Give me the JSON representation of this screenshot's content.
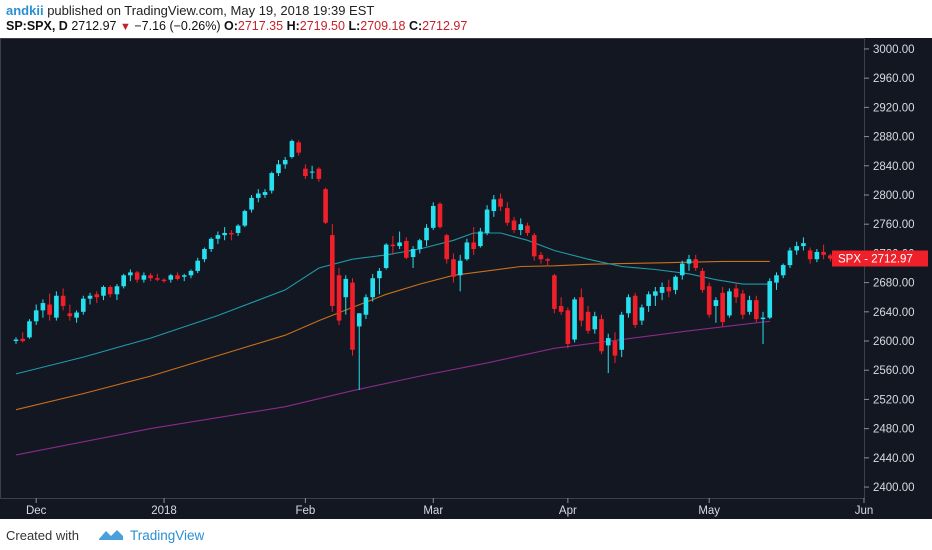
{
  "header": {
    "author": "andkii",
    "published": "published on TradingView.com, May 19, 2018 19:39 EST",
    "symbol": "SP:SPX, D",
    "last": "2712.97",
    "change": "−7.16 (−0.26%)",
    "open_label": "O:",
    "open": "2717.35",
    "high_label": "H:",
    "high": "2719.50",
    "low_label": "L:",
    "low": "2709.18",
    "close_label": "C:",
    "close": "2712.97"
  },
  "footer": {
    "created_with": "Created with",
    "brand": "TradingView"
  },
  "colors": {
    "background": "#131722",
    "up": "#26e0f0",
    "down": "#f0202a",
    "ma_short": "#1e9aa8",
    "ma_mid": "#c8701a",
    "ma_long": "#8a2a8a",
    "price_tag": "#f0202a"
  },
  "chart_data": {
    "type": "candlestick",
    "y_ticks": [
      "3000.00",
      "2960.00",
      "2920.00",
      "2880.00",
      "2840.00",
      "2800.00",
      "2760.00",
      "2720.00",
      "2680.00",
      "2640.00",
      "2600.00",
      "2560.00",
      "2520.00",
      "2480.00",
      "2440.00",
      "2400.00"
    ],
    "ylim": [
      2385,
      3015
    ],
    "x_ticks": [
      {
        "label": "Dec",
        "index": 3
      },
      {
        "label": "2018",
        "index": 22
      },
      {
        "label": "Feb",
        "index": 43
      },
      {
        "label": "Mar",
        "index": 62
      },
      {
        "label": "Apr",
        "index": 82
      },
      {
        "label": "May",
        "index": 103
      },
      {
        "label": "Jun",
        "index": 126
      }
    ],
    "price_tag": {
      "label": "SPX",
      "value": "2712.97",
      "price": 2712.97
    },
    "candles": [
      {
        "o": 2600,
        "h": 2605,
        "l": 2596,
        "c": 2602
      },
      {
        "o": 2603,
        "h": 2612,
        "l": 2598,
        "c": 2600
      },
      {
        "o": 2605,
        "h": 2630,
        "l": 2603,
        "c": 2627
      },
      {
        "o": 2627,
        "h": 2650,
        "l": 2622,
        "c": 2642
      },
      {
        "o": 2642,
        "h": 2657,
        "l": 2632,
        "c": 2652
      },
      {
        "o": 2650,
        "h": 2665,
        "l": 2628,
        "c": 2636
      },
      {
        "o": 2632,
        "h": 2668,
        "l": 2628,
        "c": 2662
      },
      {
        "o": 2662,
        "h": 2672,
        "l": 2642,
        "c": 2648
      },
      {
        "o": 2638,
        "h": 2650,
        "l": 2628,
        "c": 2634
      },
      {
        "o": 2632,
        "h": 2642,
        "l": 2625,
        "c": 2639
      },
      {
        "o": 2640,
        "h": 2662,
        "l": 2636,
        "c": 2658
      },
      {
        "o": 2658,
        "h": 2666,
        "l": 2650,
        "c": 2662
      },
      {
        "o": 2664,
        "h": 2668,
        "l": 2652,
        "c": 2660
      },
      {
        "o": 2662,
        "h": 2676,
        "l": 2656,
        "c": 2674
      },
      {
        "o": 2674,
        "h": 2676,
        "l": 2660,
        "c": 2664
      },
      {
        "o": 2664,
        "h": 2678,
        "l": 2656,
        "c": 2675
      },
      {
        "o": 2675,
        "h": 2692,
        "l": 2672,
        "c": 2690
      },
      {
        "o": 2690,
        "h": 2698,
        "l": 2682,
        "c": 2694
      },
      {
        "o": 2694,
        "h": 2696,
        "l": 2680,
        "c": 2684
      },
      {
        "o": 2684,
        "h": 2694,
        "l": 2680,
        "c": 2690
      },
      {
        "o": 2690,
        "h": 2693,
        "l": 2682,
        "c": 2686
      },
      {
        "o": 2686,
        "h": 2692,
        "l": 2682,
        "c": 2684
      },
      {
        "o": 2684,
        "h": 2686,
        "l": 2680,
        "c": 2682
      },
      {
        "o": 2684,
        "h": 2692,
        "l": 2680,
        "c": 2690
      },
      {
        "o": 2690,
        "h": 2694,
        "l": 2683,
        "c": 2685
      },
      {
        "o": 2688,
        "h": 2692,
        "l": 2682,
        "c": 2690
      },
      {
        "o": 2690,
        "h": 2698,
        "l": 2686,
        "c": 2696
      },
      {
        "o": 2696,
        "h": 2714,
        "l": 2693,
        "c": 2710
      },
      {
        "o": 2712,
        "h": 2728,
        "l": 2708,
        "c": 2726
      },
      {
        "o": 2726,
        "h": 2742,
        "l": 2722,
        "c": 2740
      },
      {
        "o": 2740,
        "h": 2750,
        "l": 2733,
        "c": 2745
      },
      {
        "o": 2745,
        "h": 2756,
        "l": 2738,
        "c": 2748
      },
      {
        "o": 2748,
        "h": 2752,
        "l": 2738,
        "c": 2746
      },
      {
        "o": 2748,
        "h": 2760,
        "l": 2744,
        "c": 2758
      },
      {
        "o": 2758,
        "h": 2780,
        "l": 2756,
        "c": 2778
      },
      {
        "o": 2780,
        "h": 2800,
        "l": 2776,
        "c": 2796
      },
      {
        "o": 2796,
        "h": 2808,
        "l": 2790,
        "c": 2802
      },
      {
        "o": 2800,
        "h": 2808,
        "l": 2796,
        "c": 2804
      },
      {
        "o": 2806,
        "h": 2832,
        "l": 2802,
        "c": 2830
      },
      {
        "o": 2830,
        "h": 2848,
        "l": 2826,
        "c": 2842
      },
      {
        "o": 2842,
        "h": 2852,
        "l": 2836,
        "c": 2848
      },
      {
        "o": 2852,
        "h": 2876,
        "l": 2850,
        "c": 2874
      },
      {
        "o": 2872,
        "h": 2875,
        "l": 2854,
        "c": 2858
      },
      {
        "o": 2836,
        "h": 2842,
        "l": 2822,
        "c": 2826
      },
      {
        "o": 2832,
        "h": 2840,
        "l": 2822,
        "c": 2832
      },
      {
        "o": 2836,
        "h": 2838,
        "l": 2818,
        "c": 2822
      },
      {
        "o": 2808,
        "h": 2810,
        "l": 2760,
        "c": 2762
      },
      {
        "o": 2745,
        "h": 2760,
        "l": 2640,
        "c": 2648
      },
      {
        "o": 2690,
        "h": 2700,
        "l": 2622,
        "c": 2628
      },
      {
        "o": 2660,
        "h": 2690,
        "l": 2636,
        "c": 2685
      },
      {
        "o": 2680,
        "h": 2686,
        "l": 2580,
        "c": 2588
      },
      {
        "o": 2620,
        "h": 2638,
        "l": 2533,
        "c": 2638
      },
      {
        "o": 2636,
        "h": 2664,
        "l": 2630,
        "c": 2660
      },
      {
        "o": 2660,
        "h": 2692,
        "l": 2654,
        "c": 2686
      },
      {
        "o": 2686,
        "h": 2700,
        "l": 2664,
        "c": 2696
      },
      {
        "o": 2700,
        "h": 2734,
        "l": 2698,
        "c": 2732
      },
      {
        "o": 2732,
        "h": 2744,
        "l": 2718,
        "c": 2730
      },
      {
        "o": 2730,
        "h": 2750,
        "l": 2726,
        "c": 2735
      },
      {
        "o": 2737,
        "h": 2742,
        "l": 2712,
        "c": 2714
      },
      {
        "o": 2715,
        "h": 2730,
        "l": 2700,
        "c": 2726
      },
      {
        "o": 2726,
        "h": 2740,
        "l": 2720,
        "c": 2738
      },
      {
        "o": 2738,
        "h": 2760,
        "l": 2730,
        "c": 2755
      },
      {
        "o": 2755,
        "h": 2790,
        "l": 2752,
        "c": 2785
      },
      {
        "o": 2788,
        "h": 2790,
        "l": 2754,
        "c": 2756
      },
      {
        "o": 2745,
        "h": 2747,
        "l": 2706,
        "c": 2712
      },
      {
        "o": 2712,
        "h": 2720,
        "l": 2680,
        "c": 2688
      },
      {
        "o": 2690,
        "h": 2718,
        "l": 2668,
        "c": 2710
      },
      {
        "o": 2712,
        "h": 2740,
        "l": 2710,
        "c": 2735
      },
      {
        "o": 2735,
        "h": 2756,
        "l": 2718,
        "c": 2726
      },
      {
        "o": 2730,
        "h": 2755,
        "l": 2728,
        "c": 2750
      },
      {
        "o": 2748,
        "h": 2786,
        "l": 2745,
        "c": 2780
      },
      {
        "o": 2778,
        "h": 2800,
        "l": 2770,
        "c": 2794
      },
      {
        "o": 2795,
        "h": 2802,
        "l": 2778,
        "c": 2784
      },
      {
        "o": 2782,
        "h": 2790,
        "l": 2758,
        "c": 2762
      },
      {
        "o": 2765,
        "h": 2770,
        "l": 2748,
        "c": 2752
      },
      {
        "o": 2752,
        "h": 2768,
        "l": 2745,
        "c": 2760
      },
      {
        "o": 2758,
        "h": 2762,
        "l": 2744,
        "c": 2748
      },
      {
        "o": 2745,
        "h": 2748,
        "l": 2710,
        "c": 2716
      },
      {
        "o": 2718,
        "h": 2722,
        "l": 2706,
        "c": 2712
      },
      {
        "o": 2712,
        "h": 2714,
        "l": 2702,
        "c": 2710
      },
      {
        "o": 2690,
        "h": 2692,
        "l": 2638,
        "c": 2644
      },
      {
        "o": 2648,
        "h": 2660,
        "l": 2636,
        "c": 2640
      },
      {
        "o": 2642,
        "h": 2646,
        "l": 2590,
        "c": 2596
      },
      {
        "o": 2602,
        "h": 2660,
        "l": 2598,
        "c": 2657
      },
      {
        "o": 2660,
        "h": 2672,
        "l": 2620,
        "c": 2628
      },
      {
        "o": 2640,
        "h": 2648,
        "l": 2610,
        "c": 2614
      },
      {
        "o": 2616,
        "h": 2640,
        "l": 2610,
        "c": 2634
      },
      {
        "o": 2630,
        "h": 2636,
        "l": 2582,
        "c": 2586
      },
      {
        "o": 2594,
        "h": 2610,
        "l": 2556,
        "c": 2604
      },
      {
        "o": 2600,
        "h": 2612,
        "l": 2570,
        "c": 2580
      },
      {
        "o": 2588,
        "h": 2640,
        "l": 2578,
        "c": 2636
      },
      {
        "o": 2638,
        "h": 2664,
        "l": 2632,
        "c": 2660
      },
      {
        "o": 2662,
        "h": 2666,
        "l": 2618,
        "c": 2622
      },
      {
        "o": 2628,
        "h": 2650,
        "l": 2622,
        "c": 2646
      },
      {
        "o": 2648,
        "h": 2668,
        "l": 2640,
        "c": 2664
      },
      {
        "o": 2662,
        "h": 2674,
        "l": 2648,
        "c": 2668
      },
      {
        "o": 2666,
        "h": 2680,
        "l": 2656,
        "c": 2674
      },
      {
        "o": 2674,
        "h": 2684,
        "l": 2660,
        "c": 2668
      },
      {
        "o": 2670,
        "h": 2690,
        "l": 2664,
        "c": 2688
      },
      {
        "o": 2690,
        "h": 2710,
        "l": 2684,
        "c": 2706
      },
      {
        "o": 2706,
        "h": 2718,
        "l": 2696,
        "c": 2712
      },
      {
        "o": 2712,
        "h": 2718,
        "l": 2696,
        "c": 2700
      },
      {
        "o": 2696,
        "h": 2700,
        "l": 2666,
        "c": 2670
      },
      {
        "o": 2675,
        "h": 2680,
        "l": 2632,
        "c": 2636
      },
      {
        "o": 2648,
        "h": 2660,
        "l": 2625,
        "c": 2656
      },
      {
        "o": 2666,
        "h": 2674,
        "l": 2620,
        "c": 2626
      },
      {
        "o": 2635,
        "h": 2672,
        "l": 2632,
        "c": 2668
      },
      {
        "o": 2672,
        "h": 2680,
        "l": 2652,
        "c": 2660
      },
      {
        "o": 2665,
        "h": 2670,
        "l": 2630,
        "c": 2636
      },
      {
        "o": 2640,
        "h": 2662,
        "l": 2636,
        "c": 2656
      },
      {
        "o": 2656,
        "h": 2662,
        "l": 2626,
        "c": 2630
      },
      {
        "o": 2630,
        "h": 2640,
        "l": 2596,
        "c": 2632
      },
      {
        "o": 2632,
        "h": 2686,
        "l": 2630,
        "c": 2682
      },
      {
        "o": 2680,
        "h": 2694,
        "l": 2670,
        "c": 2690
      },
      {
        "o": 2690,
        "h": 2706,
        "l": 2686,
        "c": 2704
      },
      {
        "o": 2704,
        "h": 2728,
        "l": 2700,
        "c": 2724
      },
      {
        "o": 2724,
        "h": 2736,
        "l": 2718,
        "c": 2730
      },
      {
        "o": 2730,
        "h": 2742,
        "l": 2724,
        "c": 2734
      },
      {
        "o": 2724,
        "h": 2728,
        "l": 2706,
        "c": 2712
      },
      {
        "o": 2712,
        "h": 2726,
        "l": 2708,
        "c": 2722
      },
      {
        "o": 2722,
        "h": 2732,
        "l": 2712,
        "c": 2718
      },
      {
        "o": 2717.35,
        "h": 2719.5,
        "l": 2709.18,
        "c": 2712.97
      }
    ],
    "ma_short": [
      [
        0,
        2555
      ],
      [
        10,
        2578
      ],
      [
        20,
        2604
      ],
      [
        30,
        2635
      ],
      [
        40,
        2670
      ],
      [
        45,
        2700
      ],
      [
        50,
        2712
      ],
      [
        55,
        2718
      ],
      [
        60,
        2726
      ],
      [
        65,
        2738
      ],
      [
        68,
        2748
      ],
      [
        72,
        2748
      ],
      [
        76,
        2738
      ],
      [
        80,
        2724
      ],
      [
        85,
        2712
      ],
      [
        90,
        2702
      ],
      [
        95,
        2698
      ],
      [
        100,
        2692
      ],
      [
        104,
        2684
      ],
      [
        108,
        2678
      ],
      [
        112,
        2678
      ]
    ],
    "ma_mid": [
      [
        0,
        2506
      ],
      [
        10,
        2528
      ],
      [
        20,
        2552
      ],
      [
        30,
        2580
      ],
      [
        40,
        2608
      ],
      [
        45,
        2628
      ],
      [
        50,
        2646
      ],
      [
        55,
        2664
      ],
      [
        60,
        2678
      ],
      [
        65,
        2690
      ],
      [
        70,
        2696
      ],
      [
        75,
        2702
      ],
      [
        80,
        2703
      ],
      [
        85,
        2705
      ],
      [
        90,
        2706
      ],
      [
        95,
        2707
      ],
      [
        100,
        2708
      ],
      [
        105,
        2709
      ],
      [
        112,
        2709
      ]
    ],
    "ma_long": [
      [
        0,
        2444
      ],
      [
        20,
        2480
      ],
      [
        40,
        2510
      ],
      [
        50,
        2532
      ],
      [
        60,
        2552
      ],
      [
        70,
        2570
      ],
      [
        80,
        2590
      ],
      [
        90,
        2602
      ],
      [
        100,
        2614
      ],
      [
        112,
        2627
      ]
    ]
  }
}
